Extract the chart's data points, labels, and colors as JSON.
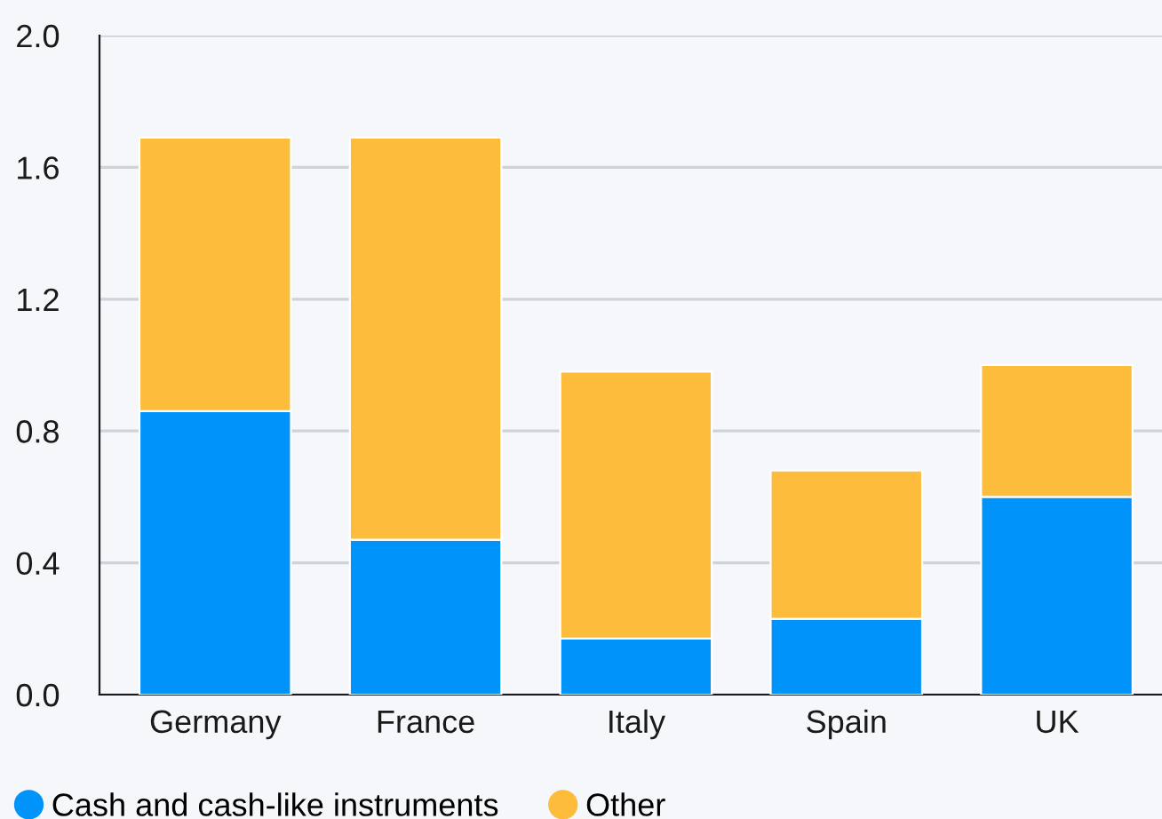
{
  "chart_data": {
    "type": "bar",
    "stacked": true,
    "categories": [
      "Germany",
      "France",
      "Italy",
      "Spain",
      "UK"
    ],
    "series": [
      {
        "name": "Cash and cash-like instruments",
        "color": "#0094fb",
        "values": [
          0.86,
          0.47,
          0.17,
          0.23,
          0.6
        ]
      },
      {
        "name": "Other",
        "color": "#fdbc3b",
        "values": [
          0.83,
          1.22,
          0.81,
          0.45,
          0.4
        ]
      }
    ],
    "ylim": [
      0,
      2.0
    ],
    "yticks": [
      {
        "value": 0,
        "label": "0.0"
      },
      {
        "value": 0.4,
        "label": "0.4"
      },
      {
        "value": 0.8,
        "label": "0.8"
      },
      {
        "value": 1.2,
        "label": "1.2"
      },
      {
        "value": 1.6,
        "label": "1.6"
      },
      {
        "value": 2.0,
        "label": "2.0"
      }
    ],
    "grid": "y",
    "legend": "bottom left"
  }
}
